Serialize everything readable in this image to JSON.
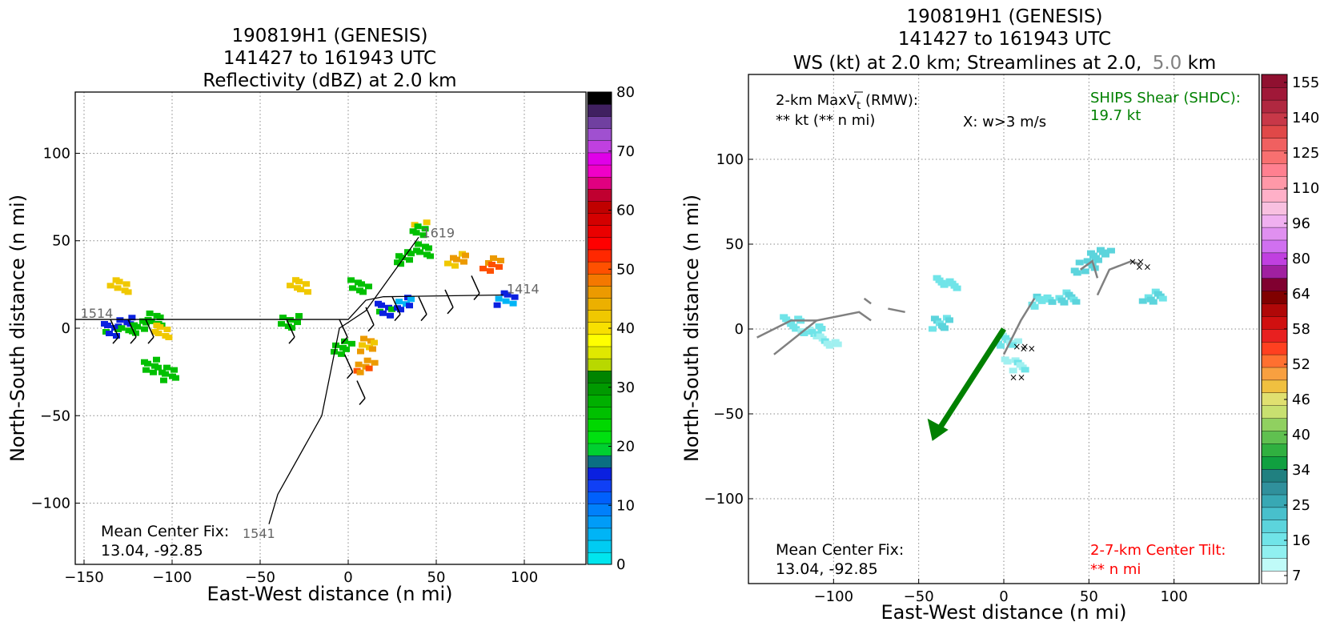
{
  "chart_data": [
    {
      "type": "scatter",
      "title_lines": [
        "190819H1 (GENESIS)",
        "141427 to 161943 UTC",
        "Reflectivity (dBZ) at 2.0 km"
      ],
      "xlabel": "East-West distance (n mi)",
      "ylabel": "North-South distance (n mi)",
      "xlim": [
        -155,
        135
      ],
      "ylim": [
        -135,
        135
      ],
      "xticks": [
        -150,
        -100,
        -50,
        0,
        50,
        100
      ],
      "yticks": [
        -100,
        -50,
        0,
        50,
        100
      ],
      "grid": true,
      "colorbar": {
        "ticks": [
          0,
          10,
          20,
          30,
          40,
          50,
          60,
          70,
          80
        ],
        "colors": [
          "#00e5ee",
          "#00ccf2",
          "#00b4f6",
          "#009cf8",
          "#0080fb",
          "#0060fd",
          "#1040f5",
          "#0a20e0",
          "#0a6f82",
          "#00d030",
          "#00e010",
          "#00d800",
          "#00c000",
          "#00b000",
          "#009a00",
          "#008400",
          "#b8d800",
          "#e0e800",
          "#ffff00",
          "#f8e000",
          "#f0c800",
          "#ecb000",
          "#ec9a00",
          "#f47800",
          "#ff5000",
          "#ff2800",
          "#ff0000",
          "#ea0000",
          "#d40000",
          "#c00000",
          "#c00030",
          "#e00080",
          "#f000c8",
          "#e000e8",
          "#c040e0",
          "#a050d0",
          "#7040a0",
          "#402060",
          "#000000"
        ]
      },
      "track": [
        [
          -155,
          5
        ],
        [
          0,
          5
        ],
        [
          10,
          16
        ],
        [
          20,
          18
        ],
        [
          88,
          19
        ]
      ],
      "track2": [
        [
          40,
          52
        ],
        [
          10,
          10
        ],
        [
          -5,
          0
        ],
        [
          -15,
          -50
        ],
        [
          -40,
          -95
        ],
        [
          -45,
          -112
        ]
      ],
      "track_labels": [
        {
          "text": "1514",
          "x": -152,
          "y": 6
        },
        {
          "text": "1414",
          "x": 90,
          "y": 20
        },
        {
          "text": "1619",
          "x": 42,
          "y": 52
        },
        {
          "text": "1541",
          "x": -60,
          "y": -120
        }
      ],
      "reflectivity_cells": [
        {
          "x": -135,
          "y": 0,
          "dbz": 15
        },
        {
          "x": -128,
          "y": 4,
          "dbz": 14
        },
        {
          "x": -120,
          "y": 2,
          "dbz": 25
        },
        {
          "x": -112,
          "y": 6,
          "dbz": 22
        },
        {
          "x": -108,
          "y": 0,
          "dbz": 35
        },
        {
          "x": -115,
          "y": -20,
          "dbz": 22
        },
        {
          "x": -105,
          "y": -25,
          "dbz": 24
        },
        {
          "x": -132,
          "y": 25,
          "dbz": 35
        },
        {
          "x": -30,
          "y": 26,
          "dbz": 36
        },
        {
          "x": -35,
          "y": 5,
          "dbz": 24
        },
        {
          "x": -5,
          "y": -10,
          "dbz": 24
        },
        {
          "x": 8,
          "y": -20,
          "dbz": 45
        },
        {
          "x": 10,
          "y": -8,
          "dbz": 42
        },
        {
          "x": 20,
          "y": 12,
          "dbz": 14
        },
        {
          "x": 30,
          "y": 15,
          "dbz": 12
        },
        {
          "x": 30,
          "y": 42,
          "dbz": 24
        },
        {
          "x": 40,
          "y": 46,
          "dbz": 25
        },
        {
          "x": 38,
          "y": 58,
          "dbz": 28
        },
        {
          "x": 60,
          "y": 40,
          "dbz": 42
        },
        {
          "x": 80,
          "y": 38,
          "dbz": 48
        },
        {
          "x": 88,
          "y": 18,
          "dbz": 12
        },
        {
          "x": 5,
          "y": 25,
          "dbz": 20
        }
      ],
      "annotation": {
        "line1": "Mean Center Fix:",
        "line2": "13.04, -92.85"
      }
    },
    {
      "type": "scatter",
      "title_lines": [
        "190819H1 (GENESIS)",
        "141427 to 161943 UTC"
      ],
      "title_line3": {
        "part1": "WS (kt) at 2.0 km; Streamlines at 2.0,",
        "part2": "5.0",
        "part3": "km"
      },
      "xlabel": "East-West distance (n mi)",
      "ylabel": "North-South distance (n mi)",
      "xlim": [
        -150,
        150
      ],
      "ylim": [
        -150,
        150
      ],
      "xticks": [
        -100,
        -50,
        0,
        50,
        100
      ],
      "yticks": [
        -100,
        -50,
        0,
        50,
        100
      ],
      "grid": true,
      "colorbar": {
        "ticks": [
          7,
          16,
          25,
          34,
          40,
          46,
          52,
          58,
          64,
          80,
          96,
          110,
          125,
          140,
          155
        ],
        "colors": [
          "#ffffff",
          "#c0fbf8",
          "#90f0f0",
          "#70e4e8",
          "#5cd4dc",
          "#48c0cc",
          "#38a8b4",
          "#30909c",
          "#208080",
          "#10a040",
          "#30b040",
          "#60c050",
          "#90d060",
          "#c8e070",
          "#e0e070",
          "#f0c040",
          "#f8a040",
          "#ff7030",
          "#ff4020",
          "#e82020",
          "#d01010",
          "#b00808",
          "#800000",
          "#800030",
          "#a020a0",
          "#c040e0",
          "#d070f0",
          "#e090f0",
          "#f0b0f0",
          "#f8c0e0",
          "#ffb0c8",
          "#ff98a8",
          "#ff8090",
          "#f87070",
          "#f06060",
          "#e04848",
          "#c83848",
          "#b02840",
          "#a01838",
          "#901030"
        ]
      },
      "texts": {
        "maxvt_line1": "2-km MaxV",
        "maxvt_sub": "t",
        "maxvt_rest": " (RMW):",
        "maxvt_line2": "** kt (** n mi)",
        "wnote": "X: w>3 m/s",
        "ships_line1": "SHIPS Shear (SHDC):",
        "ships_line2": "19.7 kt",
        "tilt_line1": "2-7-km Center Tilt:",
        "tilt_line2": "** n mi",
        "center_line1": "Mean Center Fix:",
        "center_line2": "13.04, -92.85"
      },
      "shear_vector": {
        "from": [
          0,
          0
        ],
        "to": [
          -42,
          -66
        ],
        "color": "#008000"
      },
      "ws_cells": [
        {
          "x": -125,
          "y": 5,
          "kt": 14
        },
        {
          "x": -115,
          "y": 0,
          "kt": 12
        },
        {
          "x": -105,
          "y": -5,
          "kt": 10
        },
        {
          "x": -40,
          "y": 5,
          "kt": 18
        },
        {
          "x": -35,
          "y": 28,
          "kt": 14
        },
        {
          "x": 0,
          "y": -5,
          "kt": 12
        },
        {
          "x": 5,
          "y": -20,
          "kt": 10
        },
        {
          "x": 20,
          "y": 18,
          "kt": 16
        },
        {
          "x": 35,
          "y": 20,
          "kt": 18
        },
        {
          "x": 45,
          "y": 38,
          "kt": 20
        },
        {
          "x": 55,
          "y": 45,
          "kt": 22
        },
        {
          "x": 85,
          "y": 20,
          "kt": 18
        }
      ],
      "updraft_marks": [
        [
          78,
          40
        ],
        [
          82,
          37
        ],
        [
          10,
          -10
        ],
        [
          14,
          -11
        ],
        [
          8,
          -28
        ]
      ]
    }
  ]
}
